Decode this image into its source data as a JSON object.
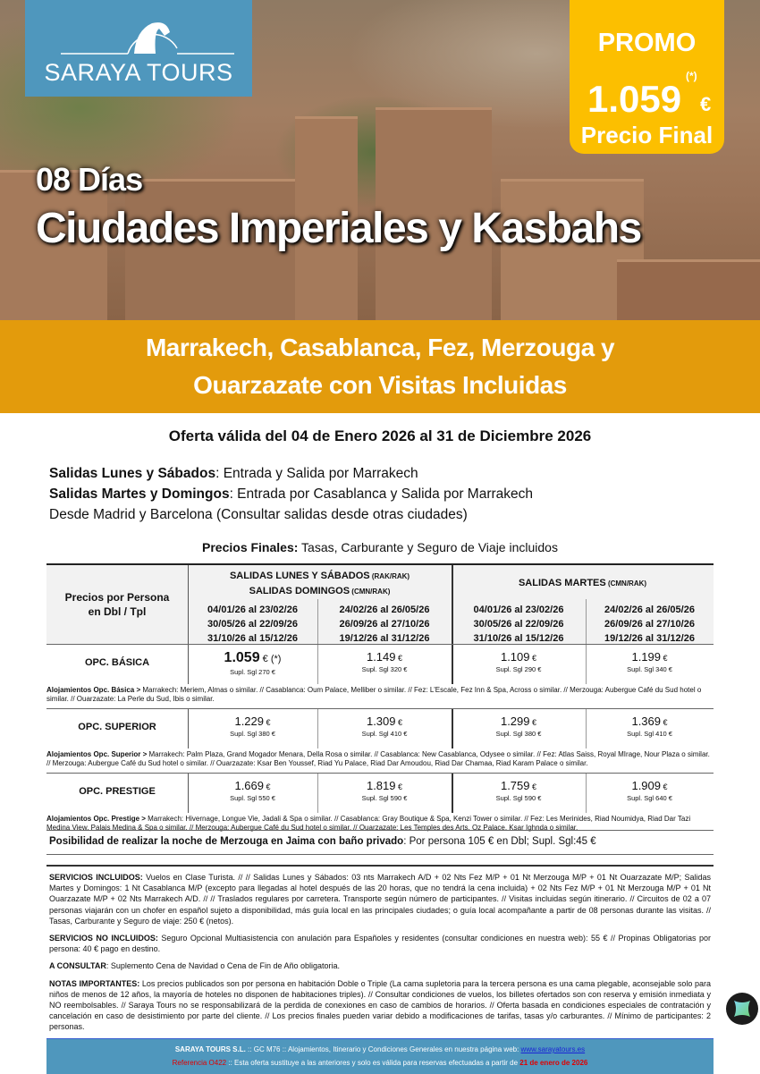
{
  "brand": {
    "name": "SARAYA TOURS",
    "color": "#4f97bd"
  },
  "promo": {
    "label": "PROMO",
    "price": "1.059",
    "asterisk": "(*)",
    "currency": "€",
    "final": "Precio Final",
    "color": "#fcbf00"
  },
  "title": {
    "days": "08 Días",
    "name": "Ciudades Imperiales y Kasbahs"
  },
  "band": {
    "line1": "Marrakech, Casablanca, Fez, Merzouga y",
    "line2": "Ouarzazate con Visitas Incluidas",
    "color": "#e39b0c"
  },
  "validity": "Oferta válida del 04 de Enero 2026 al 31 de Diciembre 2026",
  "departures": [
    {
      "bold": "Salidas Lunes y Sábados",
      "text": ": Entrada y Salida por Marrakech"
    },
    {
      "bold": "Salidas Martes y Domingos",
      "text": ": Entrada por Casablanca y Salida por Marrakech"
    },
    {
      "bold": "",
      "text": "Desde Madrid y Barcelona (Consultar salidas desde otras ciudades)"
    }
  ],
  "prices_title": {
    "bold": "Precios Finales:",
    "text": " Tasas, Carburante y Seguro de Viaje incluidos"
  },
  "table": {
    "corner": [
      "Precios por Persona",
      "en Dbl / Tpl"
    ],
    "group1": {
      "l1": "SALIDAS LUNES Y SÁBADOS",
      "l1s": " (RAK/RAK)",
      "l2": "SALIDAS DOMINGOS",
      "l2s": " (CMN/RAK)"
    },
    "group2": {
      "l1": "SALIDAS MARTES",
      "l1s": " (CMN/RAK)"
    },
    "periods": [
      [
        "04/01/26 al 23/02/26",
        "30/05/26 al 22/09/26",
        "31/10/26 al 15/12/26"
      ],
      [
        "24/02/26 al 26/05/26",
        "26/09/26 al 27/10/26",
        "19/12/26 al 31/12/26"
      ],
      [
        "04/01/26 al 23/02/26",
        "30/05/26 al 22/09/26",
        "31/10/26 al 15/12/26"
      ],
      [
        "24/02/26 al 26/05/26",
        "26/09/26 al 27/10/26",
        "19/12/26 al 31/12/26"
      ]
    ],
    "rows": [
      {
        "label": "OPC. BÁSICA",
        "cells": [
          {
            "price": "1.059",
            "suffix": " € (*)",
            "supl": "Supl. Sgl 270 €"
          },
          {
            "price": "1.149",
            "suffix": " €",
            "supl": "Supl. Sgl 320 €"
          },
          {
            "price": "1.109",
            "suffix": " €",
            "supl": "Supl. Sgl 290 €"
          },
          {
            "price": "1.199",
            "suffix": " €",
            "supl": "Supl. Sgl 340 €"
          }
        ],
        "note_bold": "Alojamientos Opc. Básica >",
        "note": " Marrakech: Meriem, Almas o similar. // Casablanca: Oum Palace, Melliber o similar. // Fez: L'Escale, Fez Inn & Spa, Across o similar. // Merzouga: Aubergue Café du Sud hotel o similar. // Ouarzazate: La Perle du Sud, Ibis o similar."
      },
      {
        "label": "OPC. SUPERIOR",
        "cells": [
          {
            "price": "1.229",
            "suffix": " €",
            "supl": "Supl. Sgl 380 €"
          },
          {
            "price": "1.309",
            "suffix": " €",
            "supl": "Supl. Sgl 410 €"
          },
          {
            "price": "1.299",
            "suffix": " €",
            "supl": "Supl. Sgl 380 €"
          },
          {
            "price": "1.369",
            "suffix": " €",
            "supl": "Supl. Sgl 410 €"
          }
        ],
        "note_bold": "Alojamientos Opc. Superior >",
        "note": " Marrakech: Palm Plaza, Grand Mogador Menara, Della Rosa o similar. // Casablanca: New Casablanca, Odysee o similar. // Fez: Atlas Saiss, Royal MIrage, Nour Plaza o similar. // Merzouga: Aubergue Café du Sud hotel o similar. // Ouarzazate: Ksar Ben Youssef, Riad Yu Palace, Riad Dar Amoudou, Riad Dar Chamaa, Riad Karam Palace o similar."
      },
      {
        "label": "OPC. PRESTIGE",
        "cells": [
          {
            "price": "1.669",
            "suffix": " €",
            "supl": "Supl. Sgl 550 €"
          },
          {
            "price": "1.819",
            "suffix": " €",
            "supl": "Supl. Sgl 590 €"
          },
          {
            "price": "1.759",
            "suffix": " €",
            "supl": "Supl. Sgl 590 €"
          },
          {
            "price": "1.909",
            "suffix": " €",
            "supl": "Supl. Sgl 640 €"
          }
        ],
        "note_bold": "Alojamientos Opc. Prestige >",
        "note": " Marrakech: Hivernage, Longue Vie, Jadali & Spa o similar. // Casablanca: Gray Boutique & Spa, Kenzi Tower o similar. // Fez: Les Merinides, Riad Noumidya, Riad Dar Tazi Medina View, Palais Medina & Spa o similar. // Merzouga: Aubergue Café du Sud hotel o similar. // Ouarzazate: Les Temples des Arts, Oz Palace, Ksar Ighnda o similar."
      }
    ]
  },
  "jaima": {
    "bold": "Posibilidad de realizar la noche de Merzouga en Jaima con baño privado",
    "text": ": Por persona 105 € en Dbl; Supl. Sgl:45 €"
  },
  "services": [
    {
      "bold": "SERVICIOS INCLUIDOS:",
      "text": " Vuelos en Clase Turista. // // Salidas Lunes y Sábados: 03 nts Marrakech A/D + 02 Nts Fez M/P + 01 Nt Merzouga M/P + 01 Nt Ouarzazate M/P; Salidas Martes y Domingos: 1 Nt Casablanca M/P (excepto para llegadas al hotel después de las 20 horas, que no tendrá la cena incluida) + 02 Nts Fez M/P + 01 Nt Merzouga M/P + 01 Nt Ouarzazate M/P + 02 Nts Marrakech A/D. // // Traslados regulares por carretera. Transporte según número de participantes. // Visitas incluidas según itinerario. // Circuitos de 02 a 07 personas viajarán con un chofer en español sujeto a disponibilidad, más guía local en las principales ciudades; o guía local acompañante a partir de 08 personas durante las visitas. // Tasas, Carburante y Seguro de viaje: 250 € (netos)."
    },
    {
      "bold": "SERVICIOS NO INCLUIDOS:",
      "text": " Seguro Opcional Multiasistencia con anulación para Españoles y residentes (consultar condiciones en nuestra web): 55 € // Propinas Obligatorias por persona: 40 €  pago en destino."
    },
    {
      "bold": "A CONSULTAR",
      "text": ": Suplemento Cena de Navidad o Cena de Fin de Año obligatoria."
    },
    {
      "bold": "NOTAS IMPORTANTES:",
      "text": " Los precios publicados son por persona en habitación Doble o Triple (La cama supletoria para la tercera persona es una cama plegable, aconsejable solo para niños de menos de 12 años, la mayoría de hoteles no disponen de habitaciones triples). // Consultar condiciones de vuelos, los billetes ofertados son con reserva y emisión inmediata y NO reembolsables. // Saraya Tours no se responsabilizará de la perdida de conexiones en caso de cambios de horarios. // Oferta basada en condiciones especiales de contratación y cancelación en caso de desistimiento por parte del cliente. // Los precios finales pueden variar debido a modificaciones de tarifas, tasas y/o carburantes. // Mínimo de participantes: 2 personas."
    }
  ],
  "footer": {
    "company": "SARAYA TOURS S.L.",
    "l1": " :: GC M76 ::  Alojamientos, Itinerario y Condiciones Generales en nuestra página web:  ",
    "link": "www.sarayatours.es",
    "ref": "Referencia O422",
    "l2": " :: Esta oferta sustituye a las anteriores y solo es válida para reservas efectuadas a partir de ",
    "date": "21 de enero de 2026"
  }
}
